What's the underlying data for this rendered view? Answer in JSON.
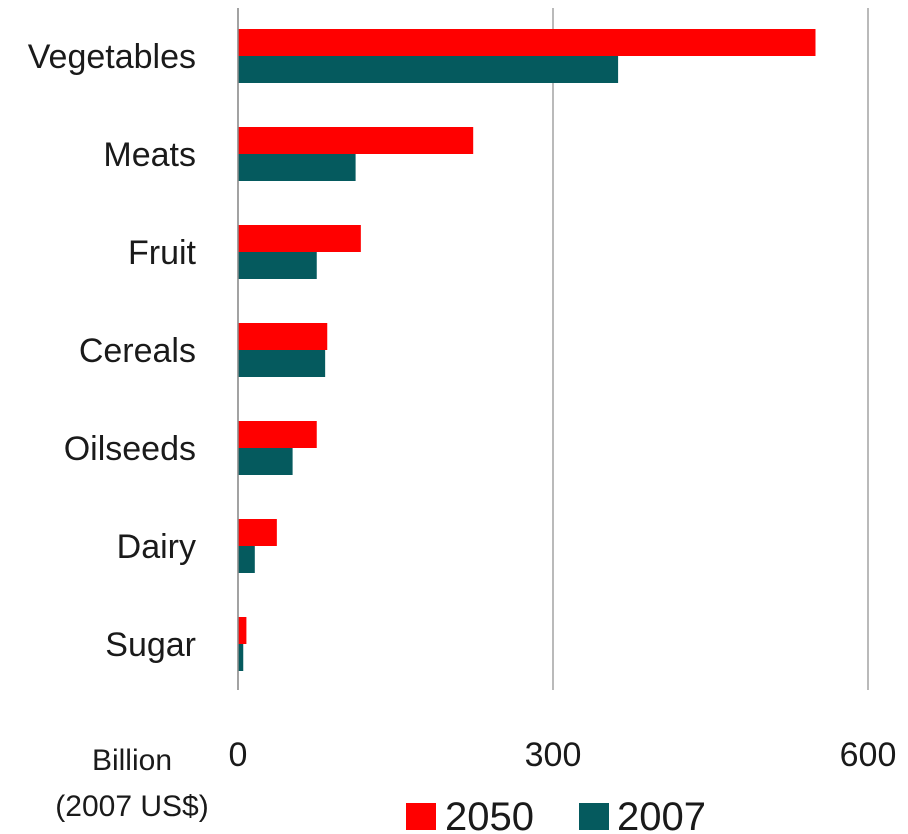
{
  "chart_data": {
    "type": "bar",
    "orientation": "horizontal",
    "categories": [
      "Vegetables",
      "Meats",
      "Fruit",
      "Cereals",
      "Oilseeds",
      "Dairy",
      "Sugar"
    ],
    "series": [
      {
        "name": "2050",
        "color": "#ff0000",
        "values": [
          550,
          224,
          117,
          85,
          75,
          37,
          8
        ]
      },
      {
        "name": "2007",
        "color": "#055a5e",
        "values": [
          362,
          112,
          75,
          83,
          52,
          16,
          5
        ]
      }
    ],
    "xlim": [
      0,
      600
    ],
    "xticks": [
      "0",
      "300",
      "600"
    ],
    "xlabel": [
      "Billion",
      "(2007 US$)"
    ],
    "gridlines": true,
    "legend_position": "bottom"
  }
}
